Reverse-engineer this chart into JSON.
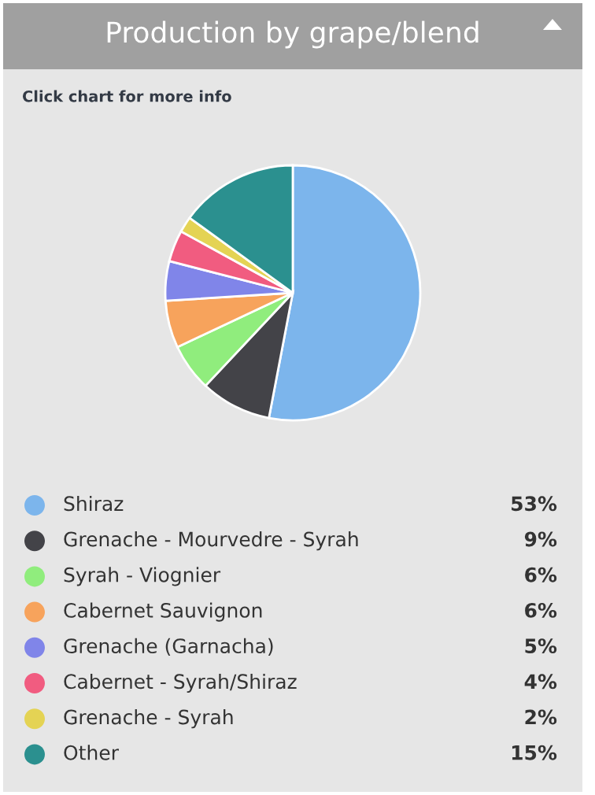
{
  "chart_data": {
    "type": "pie",
    "title": "Production by grape/blend",
    "subtitle": "Click chart for more info",
    "categories": [
      "Shiraz",
      "Grenache - Mourvedre - Syrah",
      "Syrah - Viognier",
      "Cabernet Sauvignon",
      "Grenache (Garnacha)",
      "Cabernet - Syrah/Shiraz",
      "Grenache - Syrah",
      "Other"
    ],
    "values": [
      53,
      9,
      6,
      6,
      5,
      4,
      2,
      15
    ],
    "value_labels": [
      "53%",
      "9%",
      "6%",
      "6%",
      "5%",
      "4%",
      "2%",
      "15%"
    ],
    "colors": [
      "#7cb5ec",
      "#434348",
      "#90ed7d",
      "#f7a35c",
      "#8085e9",
      "#f15c80",
      "#e4d354",
      "#2b908f"
    ],
    "legend": "bottom"
  }
}
